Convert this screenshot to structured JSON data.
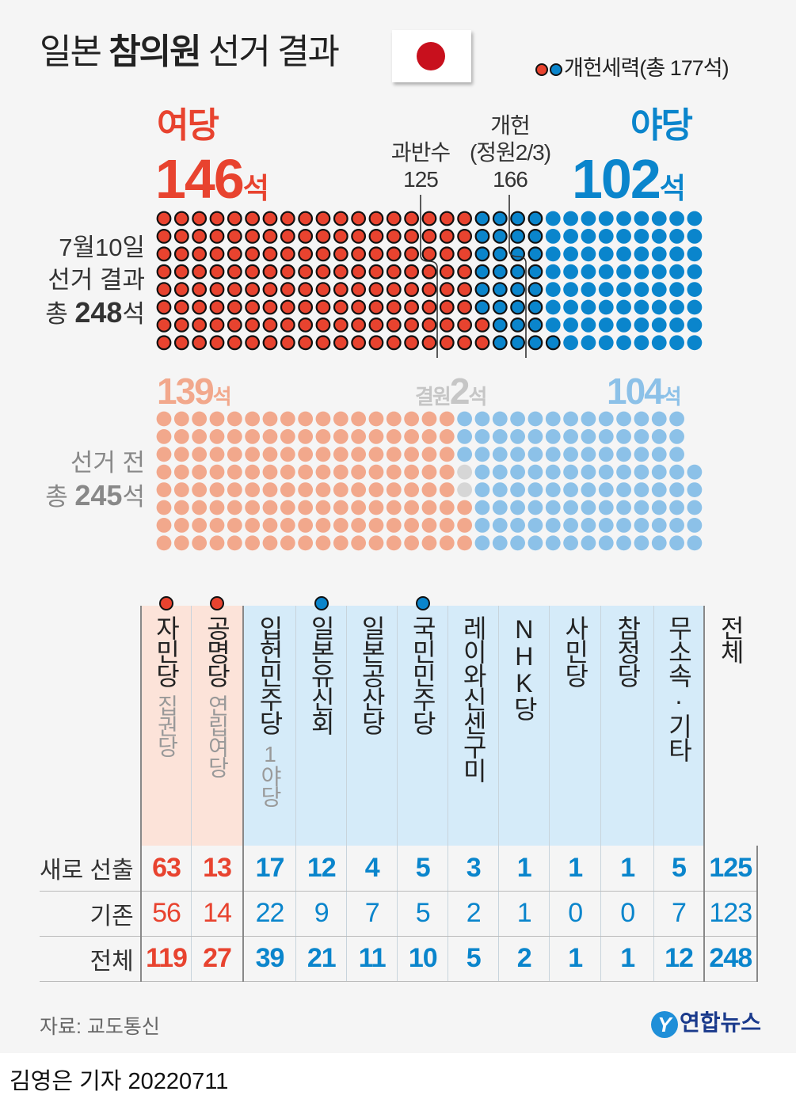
{
  "title": {
    "part1": "일본",
    "part2": "참의원",
    "part3": "선거 결과"
  },
  "legend": {
    "label": "개헌세력(총 177석)",
    "colors": [
      "#e8432f",
      "#0a85cc"
    ]
  },
  "top": {
    "ruling_label": "여당",
    "ruling_seats": "146",
    "opp_label": "야당",
    "opp_seats": "102",
    "seat_unit": "석",
    "majority_label": "과반수",
    "majority_value": "125",
    "revision_label1": "개헌",
    "revision_label2": "(정원2/3)",
    "revision_value": "166",
    "side1": "7월10일",
    "side2": "선거 결과",
    "side3_pre": "총 ",
    "side3_num": "248",
    "side3_unit": "석"
  },
  "bottom": {
    "ruling_seats": "139",
    "vacant_label": "결원",
    "vacant_seats": "2",
    "opp_seats": "104",
    "seat_unit": "석",
    "side1": "선거 전",
    "side2_pre": "총 ",
    "side2_num": "245",
    "side2_unit": "석"
  },
  "chart_data": [
    {
      "type": "dot-grid",
      "title": "7월10일 선거 결과",
      "total": 248,
      "rows": 8,
      "columns": 31,
      "series": [
        {
          "name": "여당",
          "value": 146,
          "color": "#e8432f"
        },
        {
          "name": "야당",
          "value": 102,
          "color": "#0a85cc"
        }
      ],
      "outlined_first": 177,
      "outlined_label": "개헌세력",
      "markers": [
        {
          "label": "과반수",
          "value": 125
        },
        {
          "label": "개헌(정원2/3)",
          "value": 166
        }
      ]
    },
    {
      "type": "dot-grid",
      "title": "선거 전",
      "total": 245,
      "rows": 8,
      "columns": 31,
      "series": [
        {
          "name": "여당",
          "value": 139,
          "color": "#f2a88c"
        },
        {
          "name": "결원",
          "value": 2,
          "color": "#d6d6d6"
        },
        {
          "name": "야당",
          "value": 104,
          "color": "#8cc1e8"
        }
      ]
    },
    {
      "type": "table",
      "columns": [
        "자민당",
        "공명당",
        "입헌민주당",
        "일본유신회",
        "일본공산당",
        "국민민주당",
        "레이와신센구미",
        "NHK당",
        "사민당",
        "참정당",
        "무소속·기타",
        "전체"
      ],
      "rows": [
        {
          "label": "새로 선출",
          "values": [
            "63",
            "13",
            "17",
            "12",
            "4",
            "5",
            "3",
            "1",
            "1",
            "1",
            "5",
            "125"
          ]
        },
        {
          "label": "기존",
          "values": [
            "56",
            "14",
            "22",
            "9",
            "7",
            "5",
            "2",
            "1",
            "0",
            "0",
            "7",
            "123"
          ]
        },
        {
          "label": "전체",
          "values": [
            "119",
            "27",
            "39",
            "21",
            "11",
            "10",
            "5",
            "2",
            "1",
            "1",
            "12",
            "248"
          ]
        }
      ]
    }
  ],
  "table": {
    "parties": [
      {
        "name": "자민당",
        "sub": "집권당",
        "dot": "red",
        "side": "ruling"
      },
      {
        "name": "공명당",
        "sub": "연립여당",
        "dot": "red",
        "side": "ruling"
      },
      {
        "name": "입헌민주당",
        "sub": "1야당",
        "dot": "",
        "side": "opp"
      },
      {
        "name": "일본유신회",
        "sub": "",
        "dot": "blue",
        "side": "opp"
      },
      {
        "name": "일본공산당",
        "sub": "",
        "dot": "",
        "side": "opp"
      },
      {
        "name": "국민민주당",
        "sub": "",
        "dot": "blue",
        "side": "opp"
      },
      {
        "name": "레이와신센구미",
        "sub": "",
        "dot": "",
        "side": "opp"
      },
      {
        "name": "NHK당",
        "sub": "",
        "dot": "",
        "side": "opp"
      },
      {
        "name": "사민당",
        "sub": "",
        "dot": "",
        "side": "opp"
      },
      {
        "name": "참정당",
        "sub": "",
        "dot": "",
        "side": "opp"
      },
      {
        "name": "무소속·기타",
        "sub": "",
        "dot": "",
        "side": "opp"
      },
      {
        "name": "전체",
        "sub": "",
        "dot": "",
        "side": "total"
      }
    ]
  },
  "footer": {
    "source": "자료: 교도통신",
    "logo": "연합뉴스",
    "logo_mark": "Y",
    "byline": "김영은 기자  20220711"
  }
}
